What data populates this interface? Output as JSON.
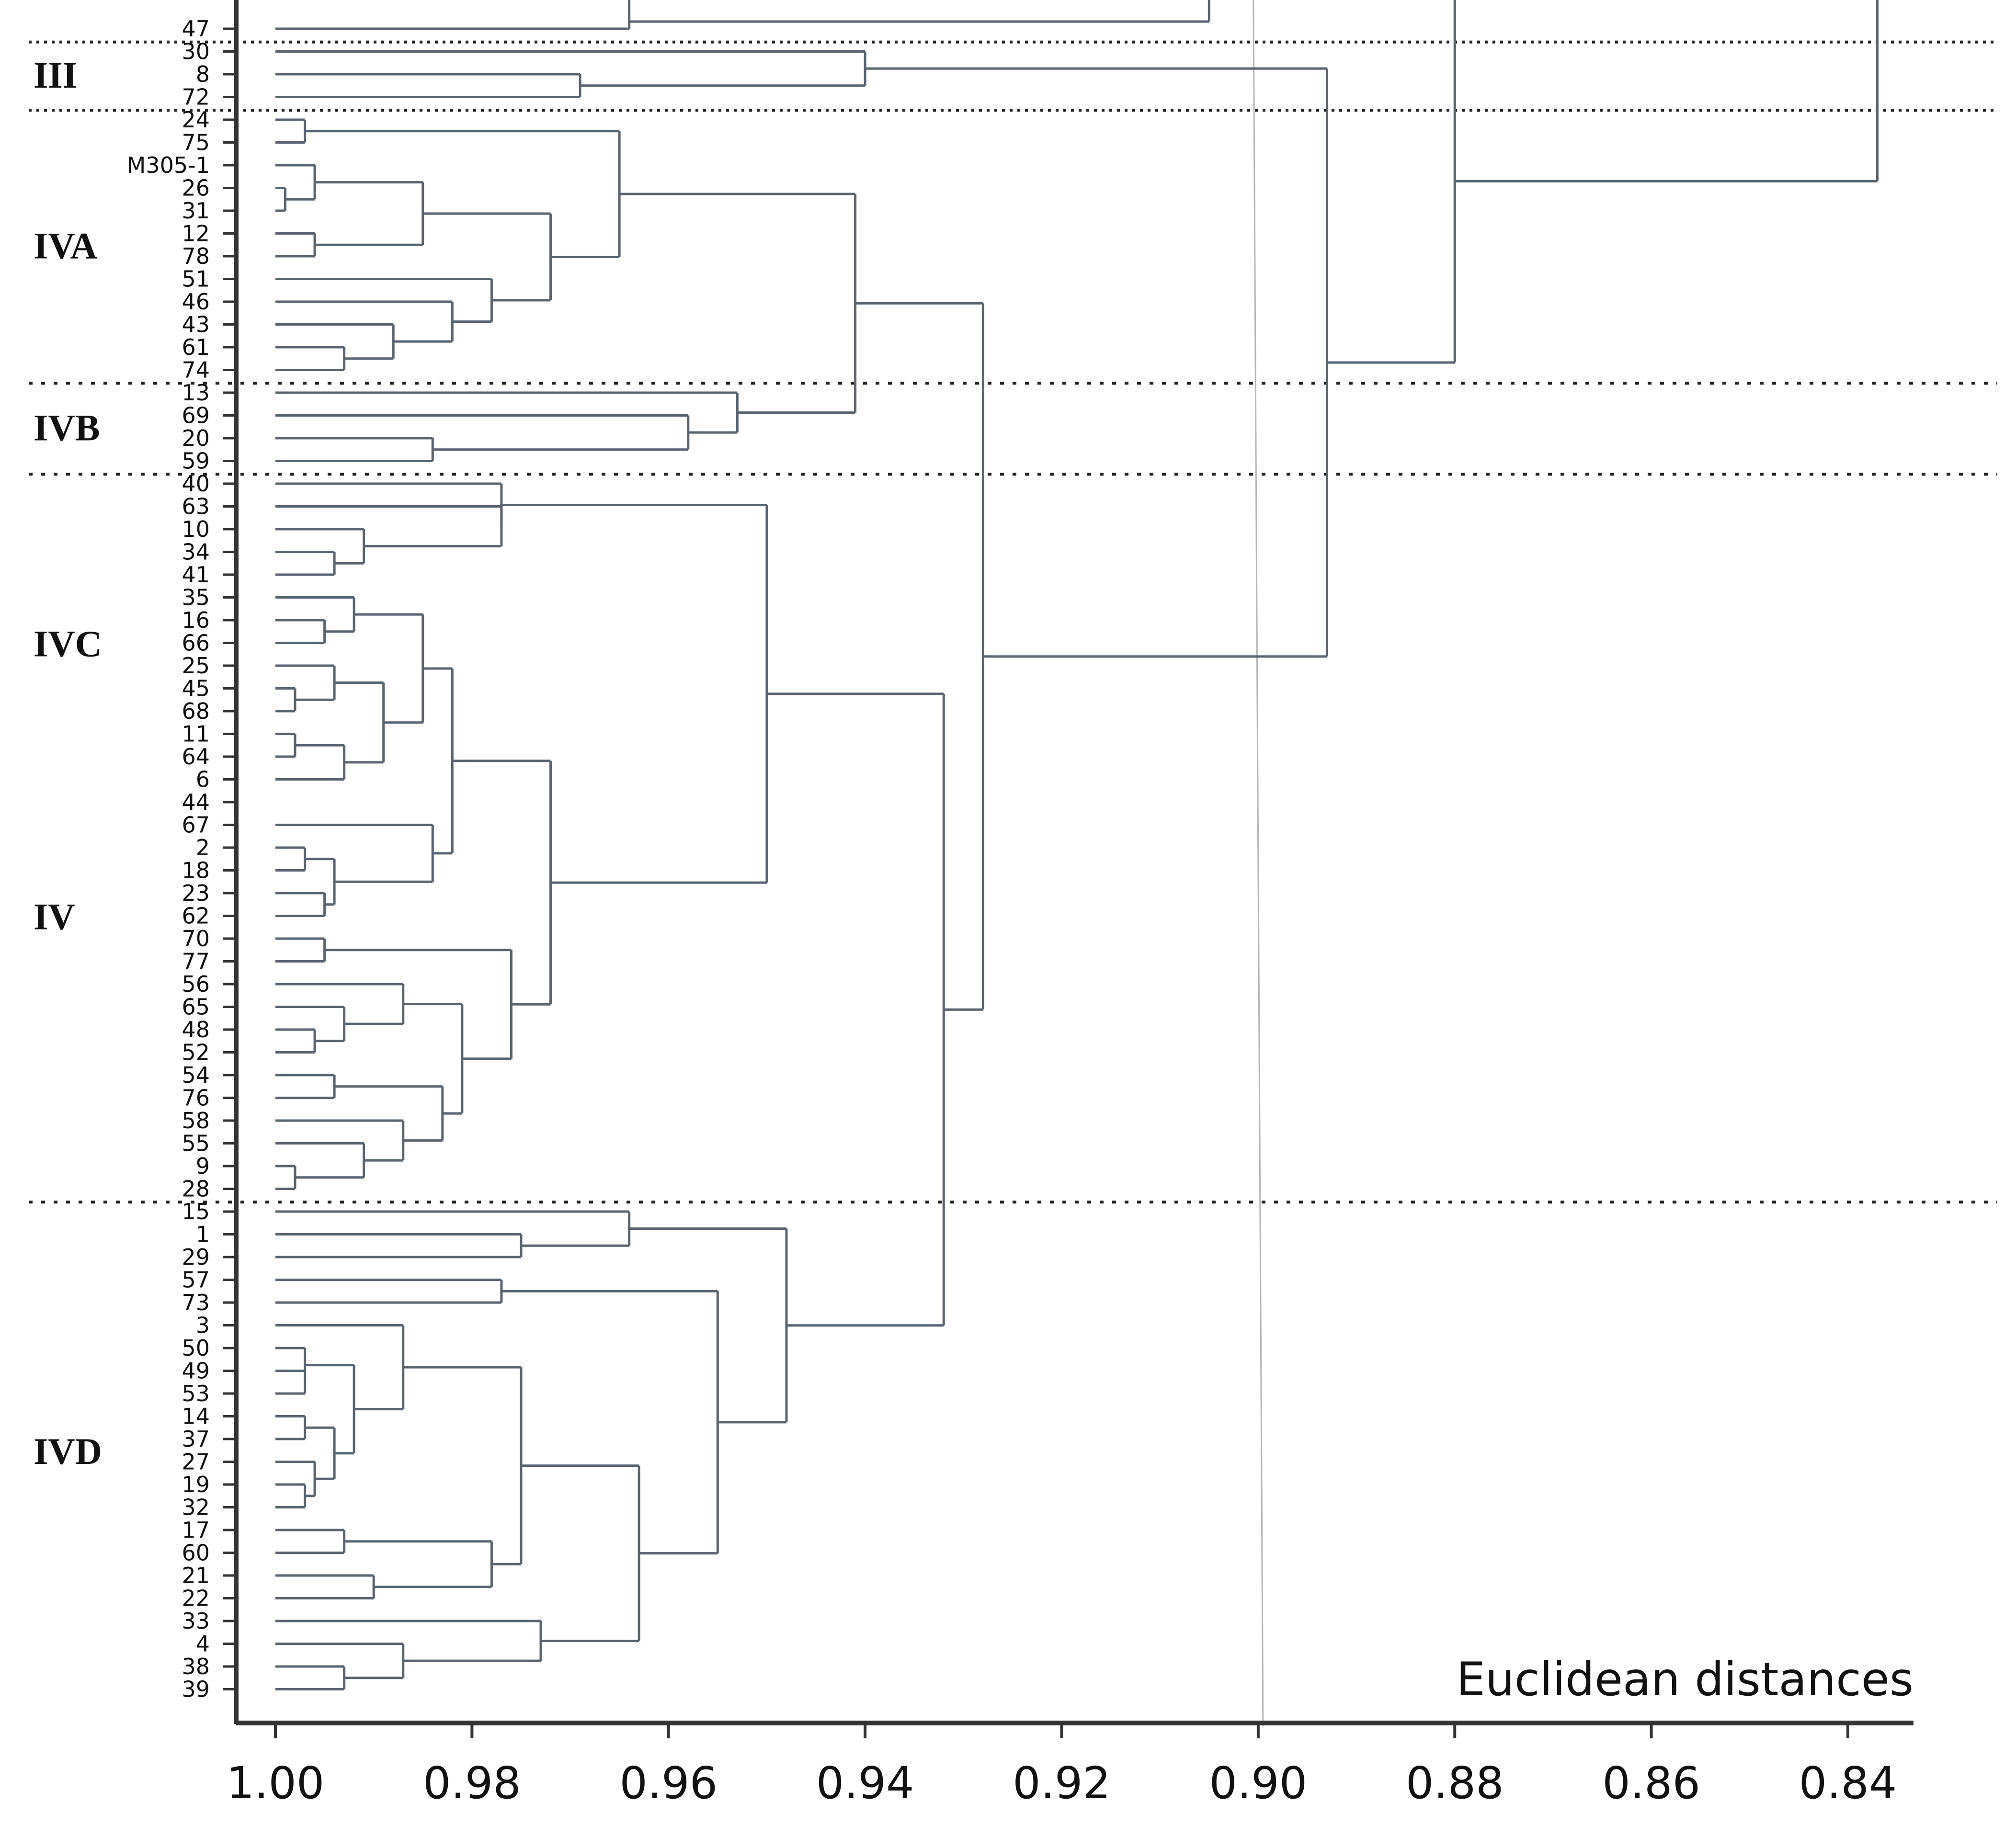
{
  "chart_data": {
    "type": "dendrogram",
    "title": "",
    "xlabel": "Euclidean distances",
    "caption": "Euclidean distances",
    "xlim": [
      1.0,
      0.835
    ],
    "ticks": [
      {
        "value": 1.0,
        "label": "1.00"
      },
      {
        "value": 0.98,
        "label": "0.98"
      },
      {
        "value": 0.96,
        "label": "0.96"
      },
      {
        "value": 0.94,
        "label": "0.94"
      },
      {
        "value": 0.92,
        "label": "0.92"
      },
      {
        "value": 0.9,
        "label": "0.90"
      },
      {
        "value": 0.88,
        "label": "0.88"
      },
      {
        "value": 0.86,
        "label": "0.86"
      },
      {
        "value": 0.84,
        "label": "0.84"
      }
    ],
    "cut_line": 0.9,
    "leaves": [
      "47",
      "30",
      "8",
      "72",
      "24",
      "75",
      "M305-1",
      "26",
      "31",
      "12",
      "78",
      "51",
      "46",
      "43",
      "61",
      "74",
      "13",
      "69",
      "20",
      "59",
      "40",
      "63",
      "10",
      "34",
      "41",
      "35",
      "16",
      "66",
      "25",
      "45",
      "68",
      "11",
      "64",
      "6",
      "44",
      "67",
      "2",
      "18",
      "23",
      "62",
      "70",
      "77",
      "56",
      "65",
      "48",
      "52",
      "54",
      "76",
      "58",
      "55",
      "9",
      "28",
      "15",
      "1",
      "29",
      "57",
      "73",
      "3",
      "50",
      "49",
      "53",
      "14",
      "37",
      "27",
      "19",
      "32",
      "17",
      "60",
      "21",
      "22",
      "33",
      "4",
      "38",
      "39"
    ],
    "merges": [
      {
        "id": "A1",
        "children": [
          "24",
          "75"
        ],
        "height": 0.997
      },
      {
        "id": "A2",
        "children": [
          "26",
          "31"
        ],
        "height": 0.999
      },
      {
        "id": "A3",
        "children": [
          "M305-1",
          "A2"
        ],
        "height": 0.996
      },
      {
        "id": "A4",
        "children": [
          "12",
          "78"
        ],
        "height": 0.996
      },
      {
        "id": "A5",
        "children": [
          "A3",
          "A4"
        ],
        "height": 0.985
      },
      {
        "id": "A6",
        "children": [
          "61",
          "74"
        ],
        "height": 0.993
      },
      {
        "id": "A7",
        "children": [
          "43",
          "A6"
        ],
        "height": 0.988
      },
      {
        "id": "A8",
        "children": [
          "46",
          "A7"
        ],
        "height": 0.982
      },
      {
        "id": "A9",
        "children": [
          "51",
          "A8"
        ],
        "height": 0.978
      },
      {
        "id": "A10",
        "children": [
          "A5",
          "A9"
        ],
        "height": 0.972
      },
      {
        "id": "A11",
        "children": [
          "A1",
          "A10"
        ],
        "height": 0.965
      },
      {
        "id": "B1",
        "children": [
          "20",
          "59"
        ],
        "height": 0.984
      },
      {
        "id": "B2",
        "children": [
          "69",
          "B1"
        ],
        "height": 0.958
      },
      {
        "id": "B3",
        "children": [
          "13",
          "B2"
        ],
        "height": 0.953
      },
      {
        "id": "AB",
        "children": [
          "A11",
          "B3"
        ],
        "height": 0.941
      },
      {
        "id": "C1",
        "children": [
          "34",
          "41"
        ],
        "height": 0.994
      },
      {
        "id": "C2",
        "children": [
          "10",
          "C1"
        ],
        "height": 0.991
      },
      {
        "id": "C3",
        "children": [
          "63",
          "C2"
        ],
        "height": 0.977
      },
      {
        "id": "C4",
        "children": [
          "40",
          "C3"
        ],
        "height": 0.977
      },
      {
        "id": "C5",
        "children": [
          "16",
          "66"
        ],
        "height": 0.995
      },
      {
        "id": "C6",
        "children": [
          "35",
          "C5"
        ],
        "height": 0.992
      },
      {
        "id": "C7",
        "children": [
          "45",
          "68"
        ],
        "height": 0.998
      },
      {
        "id": "C8",
        "children": [
          "25",
          "C7"
        ],
        "height": 0.994
      },
      {
        "id": "C9",
        "children": [
          "11",
          "64"
        ],
        "height": 0.998
      },
      {
        "id": "C10",
        "children": [
          "C9",
          "6"
        ],
        "height": 0.993
      },
      {
        "id": "C11",
        "children": [
          "C8",
          "C10"
        ],
        "height": 0.989
      },
      {
        "id": "C12",
        "children": [
          "C6",
          "C11"
        ],
        "height": 0.985
      },
      {
        "id": "C13",
        "children": [
          "2",
          "18"
        ],
        "height": 0.997
      },
      {
        "id": "C14",
        "children": [
          "23",
          "62"
        ],
        "height": 0.995
      },
      {
        "id": "C15",
        "children": [
          "C13",
          "C14"
        ],
        "height": 0.994
      },
      {
        "id": "C16",
        "children": [
          "67",
          "C15"
        ],
        "height": 0.984
      },
      {
        "id": "C17",
        "children": [
          "C12",
          "C16"
        ],
        "height": 0.982
      },
      {
        "id": "C18",
        "children": [
          "70",
          "77"
        ],
        "height": 0.995
      },
      {
        "id": "C19",
        "children": [
          "48",
          "52"
        ],
        "height": 0.996
      },
      {
        "id": "C20",
        "children": [
          "65",
          "C19"
        ],
        "height": 0.993
      },
      {
        "id": "C21",
        "children": [
          "56",
          "C20"
        ],
        "height": 0.987
      },
      {
        "id": "C22",
        "children": [
          "54",
          "76"
        ],
        "height": 0.994
      },
      {
        "id": "C23",
        "children": [
          "9",
          "28"
        ],
        "height": 0.998
      },
      {
        "id": "C24",
        "children": [
          "55",
          "C23"
        ],
        "height": 0.991
      },
      {
        "id": "C25",
        "children": [
          "58",
          "C24"
        ],
        "height": 0.987
      },
      {
        "id": "C26",
        "children": [
          "C22",
          "C25"
        ],
        "height": 0.983
      },
      {
        "id": "C27",
        "children": [
          "C21",
          "C26"
        ],
        "height": 0.981
      },
      {
        "id": "C28",
        "children": [
          "C18",
          "C27"
        ],
        "height": 0.976
      },
      {
        "id": "C29",
        "children": [
          "C17",
          "C28"
        ],
        "height": 0.972
      },
      {
        "id": "C30",
        "children": [
          "C4",
          "C29"
        ],
        "height": 0.95
      },
      {
        "id": "D1",
        "children": [
          "1",
          "29"
        ],
        "height": 0.975
      },
      {
        "id": "D2",
        "children": [
          "15",
          "D1"
        ],
        "height": 0.964
      },
      {
        "id": "D3",
        "children": [
          "57",
          "73"
        ],
        "height": 0.977
      },
      {
        "id": "D4",
        "children": [
          "49",
          "53"
        ],
        "height": 0.997
      },
      {
        "id": "D5",
        "children": [
          "50",
          "D4"
        ],
        "height": 0.997
      },
      {
        "id": "D6",
        "children": [
          "14",
          "37"
        ],
        "height": 0.997
      },
      {
        "id": "D7",
        "children": [
          "19",
          "32"
        ],
        "height": 0.997
      },
      {
        "id": "D8",
        "children": [
          "27",
          "D7"
        ],
        "height": 0.996
      },
      {
        "id": "D9",
        "children": [
          "D6",
          "D8"
        ],
        "height": 0.994
      },
      {
        "id": "D10",
        "children": [
          "D5",
          "D9"
        ],
        "height": 0.992
      },
      {
        "id": "D11",
        "children": [
          "3",
          "D10"
        ],
        "height": 0.987
      },
      {
        "id": "D12",
        "children": [
          "17",
          "60"
        ],
        "height": 0.993
      },
      {
        "id": "D13",
        "children": [
          "21",
          "22"
        ],
        "height": 0.99
      },
      {
        "id": "D14",
        "children": [
          "D12",
          "D13"
        ],
        "height": 0.978
      },
      {
        "id": "D15",
        "children": [
          "D11",
          "D14"
        ],
        "height": 0.975
      },
      {
        "id": "D16",
        "children": [
          "39",
          "38"
        ],
        "height": 0.993
      },
      {
        "id": "D17",
        "children": [
          "4",
          "D16"
        ],
        "height": 0.987
      },
      {
        "id": "D18",
        "children": [
          "33",
          "D17"
        ],
        "height": 0.973
      },
      {
        "id": "D19",
        "children": [
          "D15",
          "D18"
        ],
        "height": 0.963
      },
      {
        "id": "D20",
        "children": [
          "D3",
          "D19"
        ],
        "height": 0.955
      },
      {
        "id": "D21",
        "children": [
          "D2",
          "D20"
        ],
        "height": 0.948
      },
      {
        "id": "CD",
        "children": [
          "C30",
          "D21"
        ],
        "height": 0.932
      },
      {
        "id": "ABCD",
        "children": [
          "AB",
          "CD"
        ],
        "height": 0.928
      },
      {
        "id": "G3a",
        "children": [
          "8",
          "72"
        ],
        "height": 0.969
      },
      {
        "id": "G3",
        "children": [
          "30",
          "G3a"
        ],
        "height": 0.94
      },
      {
        "id": "R1",
        "children": [
          "G3",
          "ABCD"
        ],
        "height": 0.893
      },
      {
        "id": "R2",
        "children": [
          "R1",
          "__upper"
        ],
        "height": 0.88
      },
      {
        "id": "R3",
        "children": [
          "R2",
          "__upper2"
        ],
        "height": 0.837
      }
    ],
    "truncated_branches": [
      {
        "leaf": "47",
        "height_inner": 0.964,
        "height_outer": 0.905
      }
    ],
    "group_labels": [
      {
        "text": "III",
        "leaves": [
          "30",
          "72"
        ]
      },
      {
        "text": "IVA",
        "leaves": [
          "24",
          "74"
        ]
      },
      {
        "text": "IVB",
        "leaves": [
          "13",
          "59"
        ]
      },
      {
        "text": "IVC",
        "leaves": [
          "40",
          "44"
        ]
      },
      {
        "text": "IV",
        "leaves": [
          "62",
          "62"
        ]
      },
      {
        "text": "IVD",
        "leaves": [
          "15",
          "39"
        ]
      }
    ],
    "group_boundaries": [
      {
        "after": "47",
        "style": "dotted"
      },
      {
        "after": "72",
        "style": "dotted"
      },
      {
        "after": "74",
        "style": "dashed"
      },
      {
        "after": "59",
        "style": "dashed"
      },
      {
        "after": "28",
        "style": "dashed"
      }
    ],
    "colors": {
      "line": "#5a6470",
      "axis": "#333333",
      "text": "#111111",
      "cut": "#b5b5b5",
      "separator": "#222222"
    }
  }
}
